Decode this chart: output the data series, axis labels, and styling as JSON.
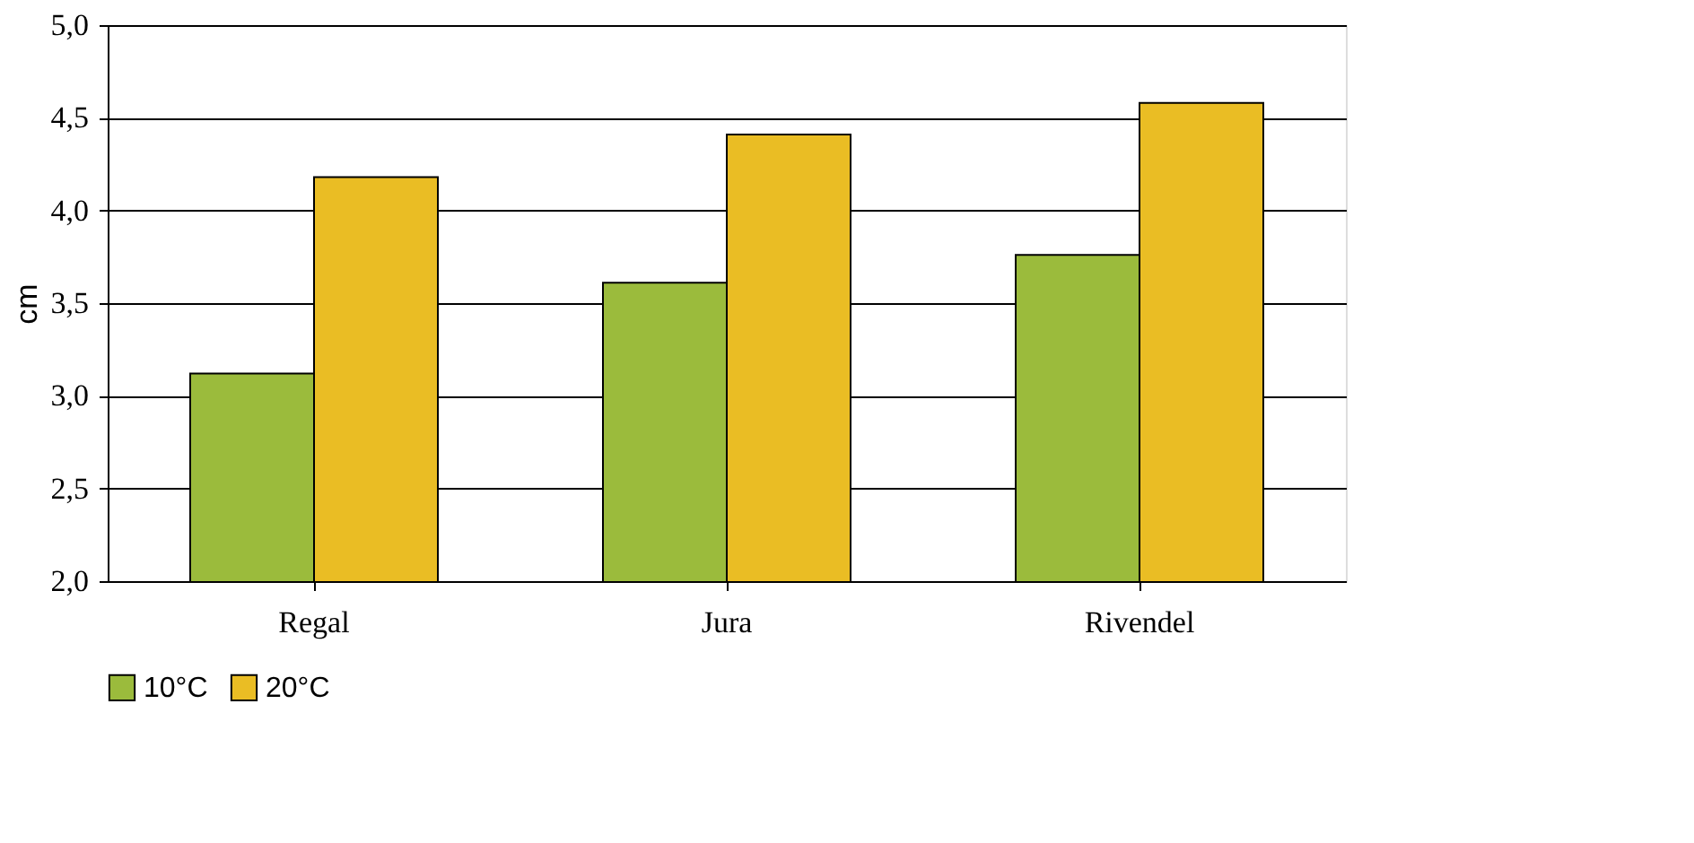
{
  "chart_data": {
    "type": "bar",
    "ylabel": "cm",
    "categories": [
      "Regal",
      "Jura",
      "Rivendel"
    ],
    "series": [
      {
        "name": "10°C",
        "color": "#9bbb3c",
        "values": [
          3.12,
          3.61,
          3.76
        ]
      },
      {
        "name": "20°C",
        "color": "#eabd24",
        "values": [
          4.18,
          4.41,
          4.58
        ]
      }
    ],
    "ylim": [
      2.0,
      5.0
    ],
    "yticks": [
      {
        "value": 2.0,
        "label": "2,0"
      },
      {
        "value": 2.5,
        "label": "2,5"
      },
      {
        "value": 3.0,
        "label": "3,0"
      },
      {
        "value": 3.5,
        "label": "3,5"
      },
      {
        "value": 4.0,
        "label": "4,0"
      },
      {
        "value": 4.5,
        "label": "4,5"
      },
      {
        "value": 5.0,
        "label": "5,0"
      }
    ],
    "grid": "y",
    "legend": "bottom left"
  }
}
